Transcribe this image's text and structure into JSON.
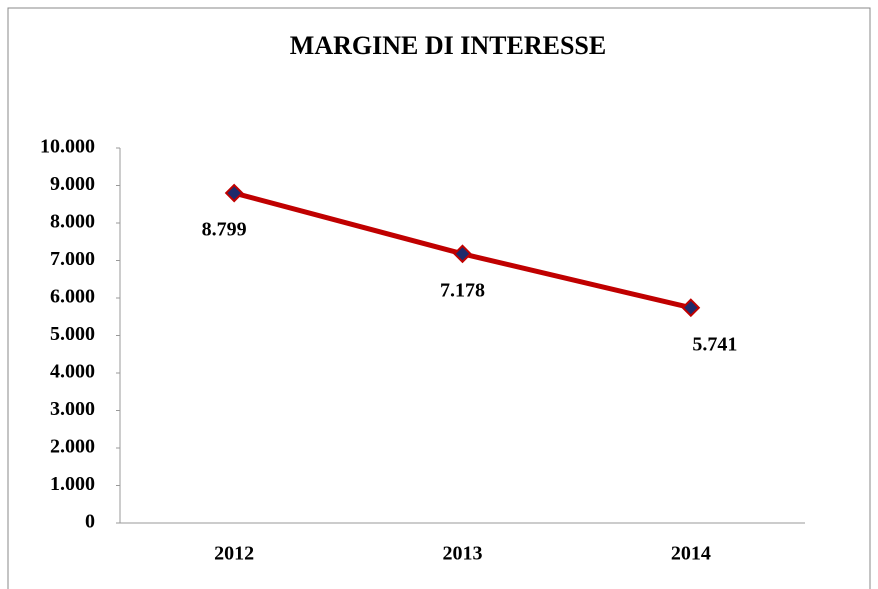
{
  "chart_data": {
    "type": "line",
    "title": "MARGINE DI INTERESSE",
    "categories": [
      "2012",
      "2013",
      "2014"
    ],
    "series": [
      {
        "name": "MARGINE DI INTERESSE",
        "color": "#c00000",
        "marker_color": "#1f2a6b",
        "values": [
          8799,
          7178,
          5741
        ],
        "value_labels": [
          "8.799",
          "7.178",
          "5.741"
        ]
      }
    ],
    "ylim": [
      0,
      10000
    ],
    "yticks": [
      0,
      {
        "value": 1000,
        "label": "1.000"
      },
      {
        "value": 2000,
        "label": "2.000"
      },
      {
        "value": 3000,
        "label": "3.000"
      },
      {
        "value": 4000,
        "label": "4.000"
      },
      {
        "value": 5000,
        "label": "5.000"
      },
      {
        "value": 6000,
        "label": "6.000"
      },
      {
        "value": 7000,
        "label": "7.000"
      },
      {
        "value": 8000,
        "label": "8.000"
      },
      {
        "value": 9000,
        "label": "9.000"
      },
      {
        "value": 10000,
        "label": "10.000"
      }
    ],
    "grid": false
  }
}
